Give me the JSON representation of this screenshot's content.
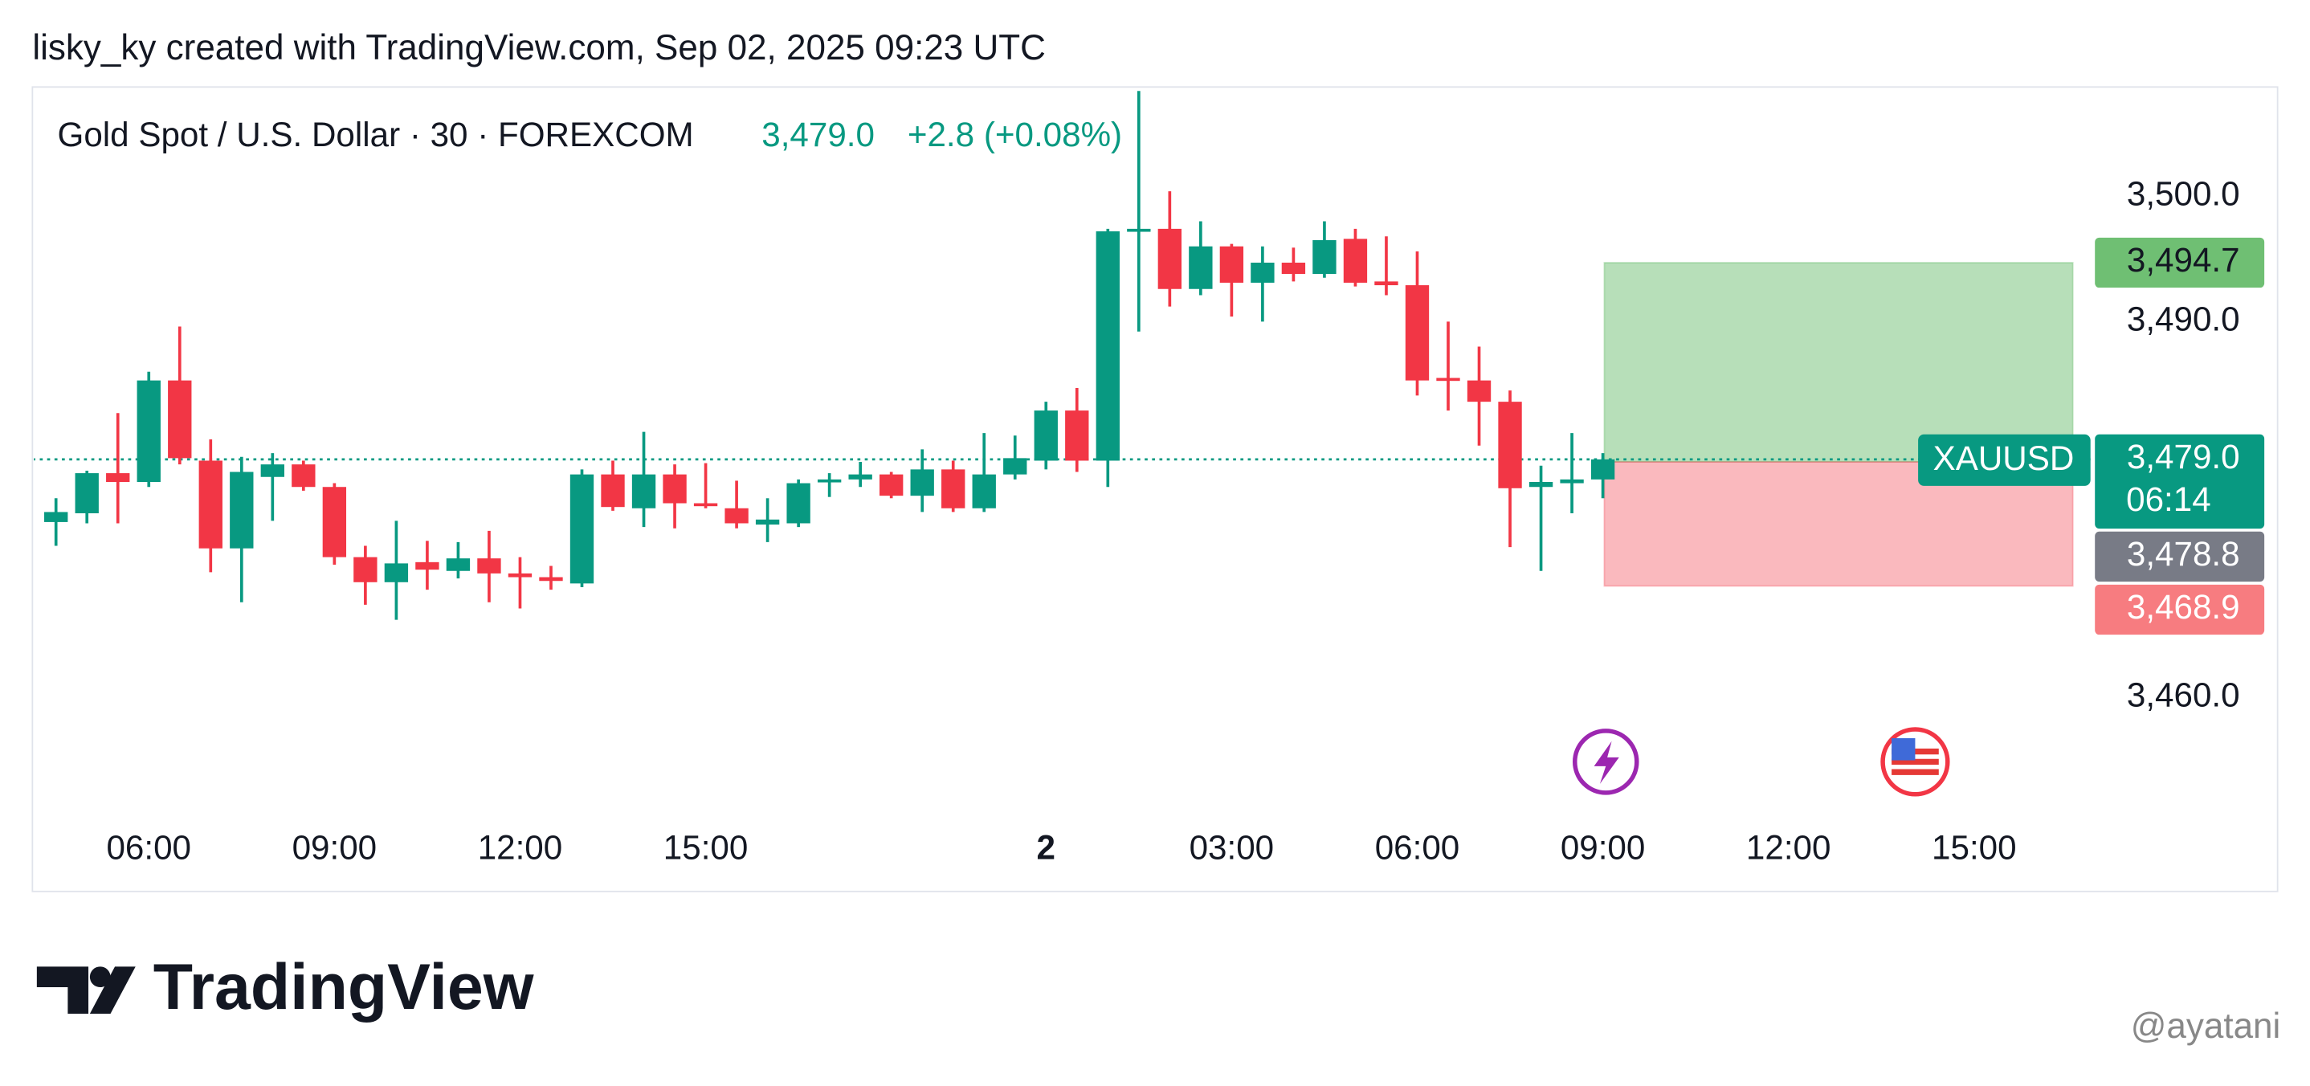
{
  "header": {
    "credit": "lisky_ky created with TradingView.com, Sep 02, 2025 09:23 UTC"
  },
  "chart_data": {
    "type": "candlestick",
    "symbol": "Gold Spot / U.S. Dollar · 30 · FOREXCOM",
    "change_label": "+2.8 (+0.08%)",
    "categories": [
      null,
      null,
      null,
      "06:00",
      null,
      null,
      null,
      null,
      null,
      "09:00",
      null,
      null,
      null,
      null,
      null,
      "12:00",
      null,
      null,
      null,
      null,
      null,
      "15:00",
      null,
      null,
      null,
      null,
      null,
      null,
      null,
      null,
      null,
      null,
      "2",
      null,
      null,
      null,
      null,
      null,
      "03:00",
      null,
      null,
      null,
      null,
      null,
      "06:00",
      null,
      null,
      null,
      null,
      null,
      "09:00",
      null,
      null,
      null,
      null,
      null,
      "12:00",
      null,
      null,
      null,
      null,
      null,
      "15:00",
      null,
      null,
      null
    ],
    "open": [
      3474.0,
      3474.7,
      3477.9,
      3477.2,
      3485.3,
      3478.9,
      3471.9,
      3477.6,
      3478.6,
      3476.8,
      3471.2,
      3469.2,
      3470.8,
      3470.1,
      3471.1,
      3469.9,
      3469.6,
      3469.1,
      3477.8,
      3475.1,
      3477.8,
      3475.5,
      3475.1,
      3473.8,
      3473.9,
      3477.2,
      3477.4,
      3477.8,
      3476.1,
      3478.2,
      3475.1,
      3477.8,
      3478.9,
      3482.9,
      3478.9,
      3497.2,
      3497.4,
      3492.6,
      3496.0,
      3493.1,
      3494.7,
      3493.8,
      3496.6,
      3493.2,
      3492.9,
      3485.5,
      3485.3,
      3483.6,
      3476.8,
      3477.1,
      3477.4,
      null,
      null,
      null,
      null,
      null,
      null,
      null,
      null,
      null,
      null,
      null,
      null,
      null,
      null,
      null
    ],
    "high": [
      3475.9,
      3478.1,
      3482.7,
      3486.0,
      3489.6,
      3480.6,
      3479.2,
      3479.5,
      3478.9,
      3477.1,
      3472.1,
      3474.1,
      3472.5,
      3472.4,
      3473.3,
      3471.2,
      3470.5,
      3478.2,
      3478.9,
      3481.2,
      3478.6,
      3478.7,
      3477.3,
      3475.9,
      3477.4,
      3477.9,
      3478.8,
      3478.0,
      3479.8,
      3478.9,
      3481.1,
      3480.9,
      3483.6,
      3484.7,
      3497.4,
      3508.4,
      3500.4,
      3498.0,
      3496.2,
      3496.0,
      3495.9,
      3498.0,
      3497.4,
      3496.8,
      3495.6,
      3490.0,
      3488.0,
      3484.5,
      3478.5,
      3481.1,
      3479.5,
      null,
      null,
      null,
      null,
      null,
      null,
      null,
      null,
      null,
      null,
      null,
      null,
      null,
      null,
      null
    ],
    "low": [
      3472.1,
      3473.9,
      3473.9,
      3476.8,
      3478.6,
      3470.0,
      3467.6,
      3474.1,
      3476.5,
      3470.6,
      3467.4,
      3466.2,
      3468.6,
      3469.5,
      3467.6,
      3467.1,
      3468.6,
      3468.8,
      3474.9,
      3473.6,
      3473.5,
      3475.1,
      3473.5,
      3472.4,
      3473.6,
      3476.0,
      3476.8,
      3475.9,
      3474.8,
      3474.8,
      3474.8,
      3477.4,
      3478.2,
      3478.0,
      3476.8,
      3489.2,
      3491.2,
      3492.1,
      3490.4,
      3490.0,
      3493.2,
      3493.5,
      3492.8,
      3492.1,
      3484.1,
      3482.9,
      3480.1,
      3472.0,
      3470.1,
      3474.7,
      3475.9,
      null,
      null,
      null,
      null,
      null,
      null,
      null,
      null,
      null,
      null,
      null,
      null,
      null,
      null,
      null
    ],
    "close": [
      3474.8,
      3477.9,
      3477.2,
      3485.3,
      3479.1,
      3471.9,
      3478.0,
      3478.6,
      3476.8,
      3471.2,
      3469.2,
      3470.7,
      3470.2,
      3471.1,
      3469.9,
      3469.6,
      3469.3,
      3477.8,
      3475.2,
      3477.8,
      3475.5,
      3475.3,
      3473.9,
      3474.2,
      3477.1,
      3477.4,
      3477.8,
      3476.1,
      3478.2,
      3475.1,
      3477.8,
      3479.1,
      3482.9,
      3478.9,
      3497.2,
      3497.4,
      3492.6,
      3496.0,
      3493.1,
      3494.7,
      3493.8,
      3496.5,
      3493.1,
      3492.9,
      3485.3,
      3485.3,
      3483.6,
      3476.7,
      3477.2,
      3477.4,
      3479.0,
      null,
      null,
      null,
      null,
      null,
      null,
      null,
      null,
      null,
      null,
      null,
      null,
      null,
      null,
      null
    ],
    "up_color": "#089981",
    "down_color": "#f23645",
    "ylim": [
      3450.4,
      3508.6
    ],
    "yticks": [
      {
        "value": 3500,
        "label": "3,500.0"
      },
      {
        "value": 3490,
        "label": "3,490.0"
      },
      {
        "value": 3460,
        "label": "3,460.0"
      }
    ],
    "current_price": {
      "value": 3479.0,
      "label": "3,479.0",
      "countdown": "06:14",
      "ticker": "XAUUSD"
    },
    "position": {
      "target": {
        "value": 3494.7,
        "label": "3,494.7"
      },
      "entry": {
        "value": 3478.8,
        "label": "3,478.8"
      },
      "stop": {
        "value": 3468.9,
        "label": "3,468.9"
      }
    }
  },
  "footer": {
    "logo_text": "TradingView",
    "watermark": "@ayatani"
  }
}
